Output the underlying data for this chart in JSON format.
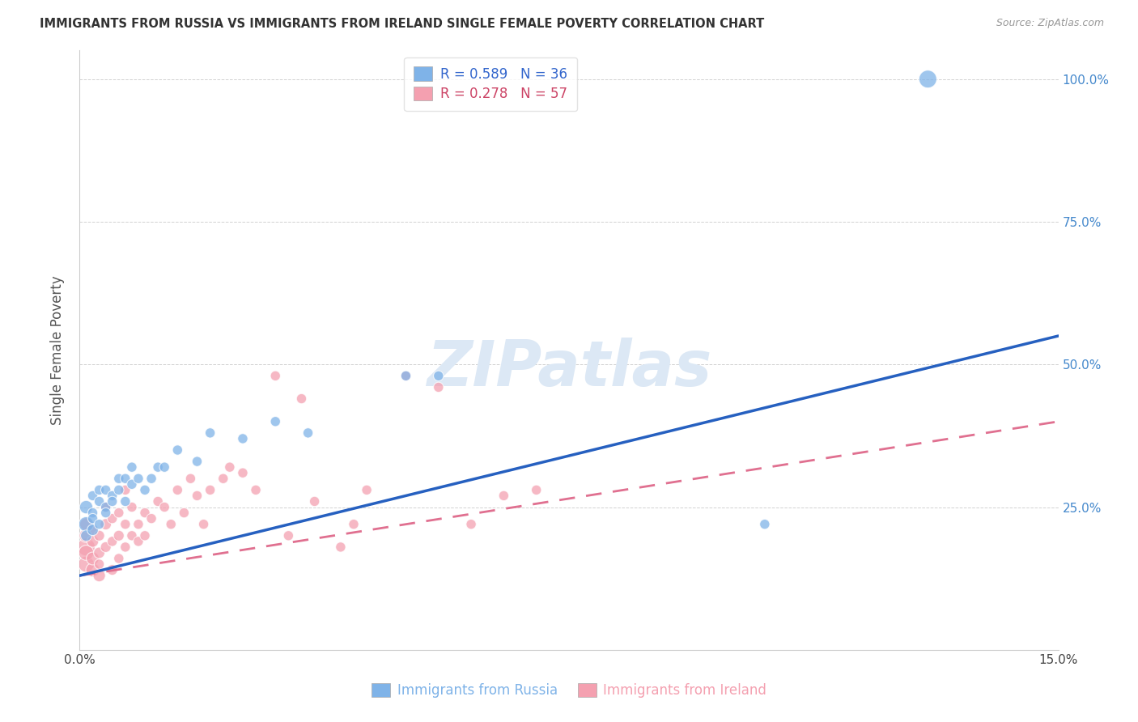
{
  "title": "IMMIGRANTS FROM RUSSIA VS IMMIGRANTS FROM IRELAND SINGLE FEMALE POVERTY CORRELATION CHART",
  "source": "Source: ZipAtlas.com",
  "ylabel": "Single Female Poverty",
  "xlim": [
    0.0,
    0.15
  ],
  "ylim": [
    0.0,
    1.05
  ],
  "x_ticks": [
    0.0,
    0.03,
    0.06,
    0.09,
    0.12,
    0.15
  ],
  "y_ticks": [
    0.0,
    0.25,
    0.5,
    0.75,
    1.0
  ],
  "russia_color": "#7fb3e8",
  "ireland_color": "#f4a0b0",
  "russia_line_color": "#2660c0",
  "ireland_line_color": "#e07090",
  "watermark_color": "#dce8f5",
  "legend_russia_r": "0.589",
  "legend_russia_n": "36",
  "legend_ireland_r": "0.278",
  "legend_ireland_n": "57",
  "russia_line_x0": 0.0,
  "russia_line_y0": 0.13,
  "russia_line_x1": 0.15,
  "russia_line_y1": 0.55,
  "ireland_line_x0": 0.0,
  "ireland_line_y0": 0.13,
  "ireland_line_x1": 0.15,
  "ireland_line_y1": 0.4,
  "russia_scatter_x": [
    0.001,
    0.001,
    0.001,
    0.002,
    0.002,
    0.002,
    0.002,
    0.003,
    0.003,
    0.003,
    0.004,
    0.004,
    0.004,
    0.005,
    0.005,
    0.006,
    0.006,
    0.007,
    0.007,
    0.008,
    0.008,
    0.009,
    0.01,
    0.011,
    0.012,
    0.013,
    0.015,
    0.018,
    0.02,
    0.025,
    0.03,
    0.035,
    0.05,
    0.055,
    0.105,
    0.13
  ],
  "russia_scatter_y": [
    0.22,
    0.25,
    0.2,
    0.21,
    0.24,
    0.23,
    0.27,
    0.22,
    0.26,
    0.28,
    0.25,
    0.24,
    0.28,
    0.27,
    0.26,
    0.3,
    0.28,
    0.26,
    0.3,
    0.29,
    0.32,
    0.3,
    0.28,
    0.3,
    0.32,
    0.32,
    0.35,
    0.33,
    0.38,
    0.37,
    0.4,
    0.38,
    0.48,
    0.48,
    0.22,
    1.0
  ],
  "russia_scatter_sizes": [
    180,
    140,
    100,
    100,
    80,
    80,
    80,
    80,
    80,
    80,
    80,
    80,
    80,
    80,
    80,
    80,
    80,
    80,
    80,
    80,
    80,
    80,
    80,
    80,
    80,
    80,
    80,
    80,
    80,
    80,
    80,
    80,
    80,
    80,
    80,
    250
  ],
  "ireland_scatter_x": [
    0.001,
    0.001,
    0.001,
    0.001,
    0.001,
    0.002,
    0.002,
    0.002,
    0.002,
    0.003,
    0.003,
    0.003,
    0.003,
    0.004,
    0.004,
    0.004,
    0.005,
    0.005,
    0.005,
    0.006,
    0.006,
    0.006,
    0.007,
    0.007,
    0.007,
    0.008,
    0.008,
    0.009,
    0.009,
    0.01,
    0.01,
    0.011,
    0.012,
    0.013,
    0.014,
    0.015,
    0.016,
    0.017,
    0.018,
    0.019,
    0.02,
    0.022,
    0.023,
    0.025,
    0.027,
    0.03,
    0.032,
    0.034,
    0.036,
    0.04,
    0.042,
    0.044,
    0.05,
    0.055,
    0.06,
    0.065,
    0.07
  ],
  "ireland_scatter_y": [
    0.18,
    0.15,
    0.17,
    0.2,
    0.22,
    0.14,
    0.16,
    0.19,
    0.21,
    0.13,
    0.17,
    0.2,
    0.15,
    0.22,
    0.18,
    0.25,
    0.14,
    0.19,
    0.23,
    0.2,
    0.16,
    0.24,
    0.22,
    0.28,
    0.18,
    0.2,
    0.25,
    0.19,
    0.22,
    0.24,
    0.2,
    0.23,
    0.26,
    0.25,
    0.22,
    0.28,
    0.24,
    0.3,
    0.27,
    0.22,
    0.28,
    0.3,
    0.32,
    0.31,
    0.28,
    0.48,
    0.2,
    0.44,
    0.26,
    0.18,
    0.22,
    0.28,
    0.48,
    0.46,
    0.22,
    0.27,
    0.28
  ],
  "ireland_scatter_sizes": [
    250,
    200,
    180,
    150,
    130,
    150,
    130,
    110,
    90,
    120,
    100,
    90,
    80,
    100,
    90,
    80,
    90,
    80,
    80,
    90,
    80,
    80,
    80,
    80,
    80,
    80,
    80,
    80,
    80,
    80,
    80,
    80,
    80,
    80,
    80,
    80,
    80,
    80,
    80,
    80,
    80,
    80,
    80,
    80,
    80,
    80,
    80,
    80,
    80,
    80,
    80,
    80,
    80,
    80,
    80,
    80,
    80
  ]
}
